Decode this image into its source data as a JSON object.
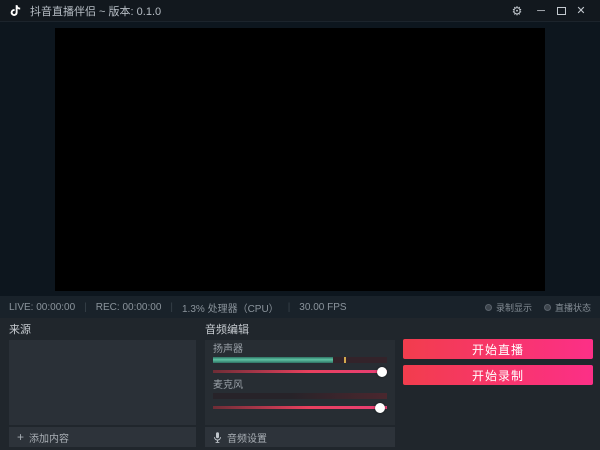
{
  "titlebar": {
    "title": "抖音直播伴侣 ~ 版本: 0.1.0",
    "gear_icon": "⚙",
    "minimize_icon": "─",
    "close_icon": "✕"
  },
  "statusbar": {
    "live": "LIVE: 00:00:00",
    "rec": "REC: 00:00:00",
    "cpu": "1.3% 处理器（CPU）",
    "fps": "30.00 FPS",
    "separator": "|",
    "indicators": [
      {
        "label": "录制显示"
      },
      {
        "label": "直播状态"
      }
    ]
  },
  "sources": {
    "title": "来源",
    "add_icon": "+",
    "add_label": "添加内容"
  },
  "audio": {
    "title": "音频编辑",
    "speaker_label": "扬声器",
    "mic_label": "麦克风",
    "settings_label": "音频设置",
    "speaker_meter_percent": 69,
    "speaker_peak_percent": 75,
    "speaker_slider_percent": 97,
    "mic_slider_percent": 96
  },
  "buttons": {
    "start_live": "开始直播",
    "start_record": "开始录制"
  },
  "colors": {
    "accent_gradient_start": "#f23d4d",
    "accent_gradient_end": "#fc2f87",
    "meter_teal": "#4aa78d",
    "peak_marker": "#d2a94e"
  }
}
